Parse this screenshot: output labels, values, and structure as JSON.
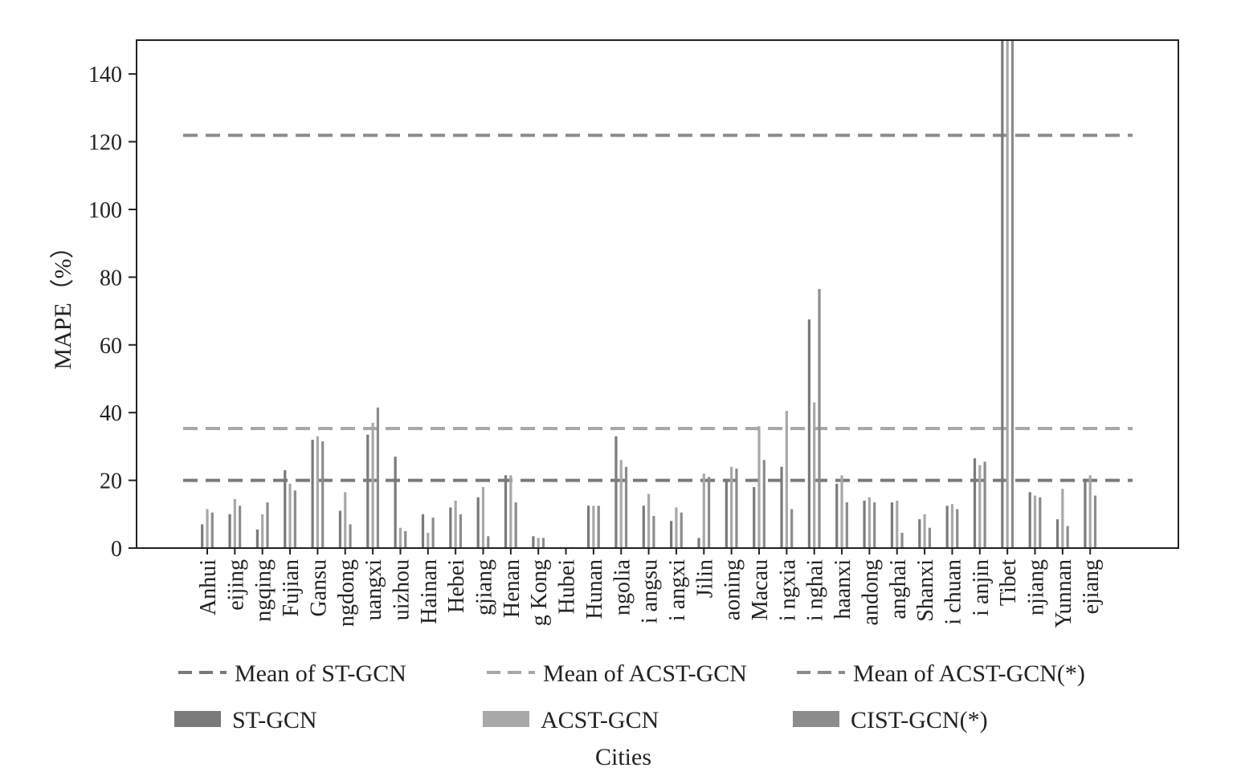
{
  "chart_data": {
    "type": "bar",
    "xlabel": "Cities",
    "ylabel": "MAPE（%）",
    "ylim": [
      0,
      150
    ],
    "yticks": [
      0,
      20,
      40,
      60,
      80,
      100,
      120,
      140
    ],
    "grid": false,
    "legend_position": "bottom",
    "categories": [
      "Anhui",
      "eijing",
      "ngqing",
      "Fujian",
      "Gansu",
      "ngdong",
      "uangxi",
      "uizhou",
      "Hainan",
      "Hebei",
      "gjiang",
      "Henan",
      "g Kong",
      "Hubei",
      "Hunan",
      "ngolia",
      "i angsu",
      "i angxi",
      "Jilin",
      "aoning",
      "Macau",
      "i ngxia",
      "i nghai",
      "haanxi",
      "andong",
      "anghai",
      "Shanxi",
      "i chuan",
      "i anjin",
      "Tibet",
      "njiang",
      "Yunnan",
      "ejiang"
    ],
    "series": [
      {
        "name": "ST-GCN",
        "color": "#7a7a7a",
        "values": [
          7,
          10,
          5.5,
          23,
          32,
          11,
          33.5,
          27,
          10,
          12,
          15,
          21.5,
          3.5,
          0.3,
          12.5,
          33,
          12.5,
          8,
          3,
          20.5,
          18,
          24,
          67.5,
          19,
          14,
          13.5,
          8.5,
          12.5,
          26.5,
          150,
          16.5,
          8.5,
          20.5
        ]
      },
      {
        "name": "ACST-GCN",
        "color": "#a8a8a8",
        "values": [
          11.5,
          14.5,
          10,
          19,
          33,
          16.5,
          37,
          6,
          4.5,
          14,
          18,
          21.5,
          3,
          0.3,
          12.5,
          26,
          16,
          12,
          22,
          24,
          36,
          40.5,
          43,
          21.5,
          15,
          14,
          10,
          13,
          24.5,
          150,
          15.5,
          17.5,
          21.5
        ]
      },
      {
        "name": "CIST-GCN(*)",
        "color": "#8c8c8c",
        "values": [
          10.5,
          12.5,
          13.5,
          17,
          31.5,
          7,
          41.5,
          5,
          9,
          10,
          3.5,
          13.5,
          3,
          0.3,
          12.5,
          24,
          9.5,
          10.5,
          21,
          23.5,
          26,
          11.5,
          76.5,
          13.5,
          13.5,
          4.5,
          6,
          11.5,
          25.5,
          150,
          15,
          6.5,
          15.5
        ]
      }
    ],
    "reference_lines": [
      {
        "name": "Mean of ST-GCN",
        "value": 20,
        "color": "#7a7a7a"
      },
      {
        "name": "Mean of ACST-GCN",
        "value": 35.3,
        "color": "#a8a8a8"
      },
      {
        "name": "Mean of ACST-GCN(*)",
        "value": 121.9,
        "color": "#8c8c8c"
      }
    ]
  },
  "legend": {
    "items": [
      {
        "label": "Mean of ST-GCN",
        "kind": "dash",
        "color": "#7a7a7a"
      },
      {
        "label": "Mean of ACST-GCN",
        "kind": "dash",
        "color": "#a8a8a8"
      },
      {
        "label": "Mean of ACST-GCN(*)",
        "kind": "dash",
        "color": "#8c8c8c"
      },
      {
        "label": "ST-GCN",
        "kind": "patch",
        "color": "#7a7a7a"
      },
      {
        "label": "ACST-GCN",
        "kind": "patch",
        "color": "#a8a8a8"
      },
      {
        "label": "CIST-GCN(*)",
        "kind": "patch",
        "color": "#8c8c8c"
      }
    ]
  }
}
